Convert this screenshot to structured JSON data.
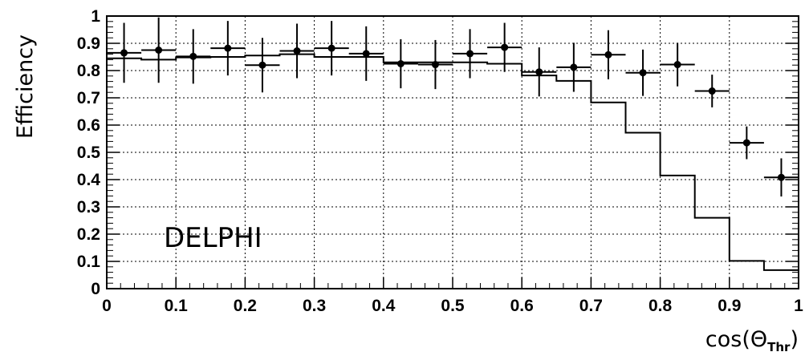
{
  "chart_data": {
    "type": "scatter",
    "ylabel": "Efficiency",
    "xlabel": {
      "base": "cos(Θ",
      "sub": "Thr",
      "tail": ")"
    },
    "annotation": "DELPHI",
    "xlim": [
      0,
      1
    ],
    "ylim": [
      0,
      1
    ],
    "xticks": [
      "0",
      "0.1",
      "0.2",
      "0.3",
      "0.4",
      "0.5",
      "0.6",
      "0.7",
      "0.8",
      "0.9",
      "1"
    ],
    "yticks": [
      "0",
      "0.1",
      "0.2",
      "0.3",
      "0.4",
      "0.5",
      "0.6",
      "0.7",
      "0.8",
      "0.9",
      "1"
    ],
    "grid": true,
    "series": [
      {
        "kind": "points_with_errors",
        "x": [
          0.025,
          0.075,
          0.125,
          0.175,
          0.225,
          0.275,
          0.325,
          0.375,
          0.425,
          0.475,
          0.525,
          0.575,
          0.625,
          0.675,
          0.725,
          0.775,
          0.825,
          0.875,
          0.925,
          0.975
        ],
        "y": [
          0.865,
          0.875,
          0.852,
          0.882,
          0.82,
          0.872,
          0.882,
          0.862,
          0.825,
          0.822,
          0.862,
          0.885,
          0.795,
          0.812,
          0.858,
          0.792,
          0.822,
          0.725,
          0.535,
          0.408
        ],
        "err_low": [
          0.11,
          0.12,
          0.1,
          0.1,
          0.1,
          0.1,
          0.1,
          0.1,
          0.09,
          0.09,
          0.09,
          0.09,
          0.09,
          0.09,
          0.09,
          0.085,
          0.08,
          0.06,
          0.06,
          0.07
        ],
        "err_high": [
          0.11,
          0.12,
          0.1,
          0.1,
          0.1,
          0.1,
          0.1,
          0.1,
          0.09,
          0.09,
          0.09,
          0.09,
          0.09,
          0.09,
          0.09,
          0.085,
          0.08,
          0.06,
          0.06,
          0.07
        ],
        "x_halfwidth": 0.025
      },
      {
        "kind": "histogram_step",
        "bin_edges": [
          0,
          0.05,
          0.1,
          0.15,
          0.2,
          0.25,
          0.3,
          0.35,
          0.4,
          0.45,
          0.5,
          0.55,
          0.6,
          0.65,
          0.7,
          0.75,
          0.8,
          0.85,
          0.9,
          0.95,
          1.0
        ],
        "values": [
          0.845,
          0.84,
          0.848,
          0.85,
          0.855,
          0.86,
          0.85,
          0.85,
          0.83,
          0.83,
          0.83,
          0.825,
          0.782,
          0.762,
          0.683,
          0.572,
          0.415,
          0.26,
          0.102,
          0.068
        ]
      }
    ]
  }
}
